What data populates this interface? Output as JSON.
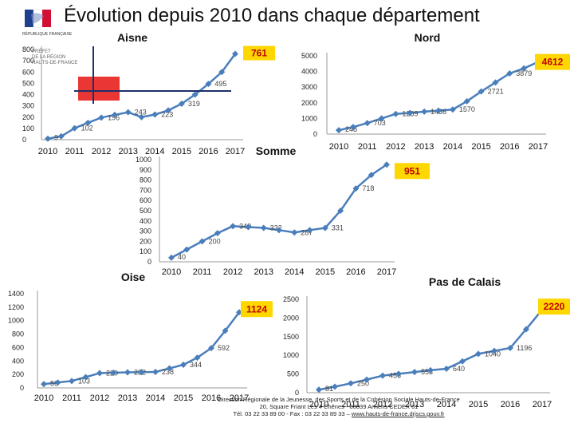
{
  "page_title": "Évolution depuis 2010 dans chaque département",
  "logo_text": "RÉPUBLIQUE FRANÇAISE",
  "insert_text": [
    "PRÉFET",
    "DE LA RÉGION",
    "HAUTS-DE-FRANCE"
  ],
  "footer": {
    "line1": "Direction Régionale de la Jeunesse, des Sports et de la Cohésion Sociale Hauts-de-France",
    "line2": "20, Square Friant Les 4 Chênes - 80039 Amiens CEDEX 01",
    "line3_prefix": "Tél. 03 22 33 89 00 - Fax : 03 22 33 89 33 – ",
    "line3_link": "www.hauts-de-france.drjscs.gouv.fr"
  },
  "colors": {
    "line": "#4a7ebb",
    "label_box": "#ffd700",
    "label_text": "#c00000",
    "gray_text": "#444444"
  },
  "chart_data": [
    {
      "type": "line",
      "title": "Aisne",
      "categories": [
        "2010",
        "2011",
        "2012",
        "2013",
        "2014",
        "2015",
        "2016",
        "2017"
      ],
      "x": [
        2010,
        2010.5,
        2011,
        2011.5,
        2012,
        2012.5,
        2013,
        2013.5,
        2014,
        2014.5,
        2015,
        2015.5,
        2016,
        2016.5,
        2017
      ],
      "values": [
        9,
        30,
        102,
        150,
        196,
        220,
        243,
        200,
        223,
        260,
        319,
        400,
        495,
        600,
        761
      ],
      "point_labels": [
        "9",
        "",
        "102",
        "",
        "196",
        "",
        "243",
        "",
        "223",
        "",
        "319",
        "",
        "495",
        "",
        "761"
      ],
      "yticks": [
        0,
        100,
        200,
        300,
        400,
        500,
        600,
        700,
        800
      ],
      "ylim": [
        0,
        800
      ],
      "highlight_label": "761"
    },
    {
      "type": "line",
      "title": "Nord",
      "categories": [
        "2010",
        "2011",
        "2012",
        "2013",
        "2014",
        "2015",
        "2016",
        "2017"
      ],
      "x": [
        2010,
        2010.5,
        2011,
        2011.5,
        2012,
        2012.5,
        2013,
        2013.5,
        2014,
        2014.5,
        2015,
        2015.5,
        2016,
        2016.5,
        2017
      ],
      "values": [
        248,
        450,
        703,
        1000,
        1289,
        1350,
        1436,
        1500,
        1570,
        2100,
        2721,
        3300,
        3879,
        4200,
        4612
      ],
      "point_labels": [
        "248",
        "",
        "703",
        "",
        "1289",
        "",
        "1436",
        "",
        "1570",
        "",
        "2721",
        "",
        "3879",
        "",
        "4612"
      ],
      "yticks": [
        0,
        1000,
        2000,
        3000,
        4000,
        5000
      ],
      "ylim": [
        0,
        5000
      ],
      "highlight_label": "4612"
    },
    {
      "type": "line",
      "title": "Somme",
      "categories": [
        "2010",
        "2011",
        "2012",
        "2013",
        "2014",
        "2015",
        "2016",
        "2017"
      ],
      "x": [
        2010,
        2010.5,
        2011,
        2011.5,
        2012,
        2012.5,
        2013,
        2013.5,
        2014,
        2014.5,
        2015,
        2015.5,
        2016,
        2016.5,
        2017
      ],
      "values": [
        40,
        120,
        200,
        280,
        349,
        340,
        332,
        310,
        287,
        310,
        331,
        500,
        718,
        850,
        951
      ],
      "point_labels": [
        "40",
        "",
        "200",
        "",
        "349",
        "",
        "332",
        "",
        "287",
        "",
        "331",
        "",
        "718",
        "",
        "951"
      ],
      "yticks": [
        0,
        100,
        200,
        300,
        400,
        500,
        600,
        700,
        800,
        900,
        1000
      ],
      "ylim": [
        0,
        1000
      ],
      "highlight_label": "951"
    },
    {
      "type": "line",
      "title": "Oise",
      "categories": [
        "2010",
        "2011",
        "2012",
        "2013",
        "2014",
        "2015",
        "2016",
        "2017"
      ],
      "x": [
        2010,
        2010.5,
        2011,
        2011.5,
        2012,
        2012.5,
        2013,
        2013.5,
        2014,
        2014.5,
        2015,
        2015.5,
        2016,
        2016.5,
        2017
      ],
      "values": [
        56,
        80,
        103,
        160,
        220,
        226,
        232,
        235,
        238,
        290,
        344,
        450,
        592,
        850,
        1124
      ],
      "point_labels": [
        "56",
        "",
        "103",
        "",
        "220",
        "",
        "232",
        "",
        "238",
        "",
        "344",
        "",
        "592",
        "",
        "1124"
      ],
      "yticks": [
        0,
        200,
        400,
        600,
        800,
        1000,
        1200,
        1400
      ],
      "ylim": [
        0,
        1400
      ],
      "highlight_label": "1124"
    },
    {
      "type": "line",
      "title": "Pas de Calais",
      "categories": [
        "2010",
        "2011",
        "2012",
        "2013",
        "2014",
        "2015",
        "2016",
        "2017"
      ],
      "x": [
        2010,
        2010.5,
        2011,
        2011.5,
        2012,
        2012.5,
        2013,
        2013.5,
        2014,
        2014.5,
        2015,
        2015.5,
        2016,
        2016.5,
        2017
      ],
      "values": [
        81,
        160,
        250,
        350,
        456,
        505,
        553,
        600,
        640,
        840,
        1040,
        1120,
        1196,
        1700,
        2220
      ],
      "point_labels": [
        "81",
        "",
        "250",
        "",
        "456",
        "",
        "553",
        "",
        "640",
        "",
        "1040",
        "",
        "1196",
        "",
        "2220"
      ],
      "yticks": [
        0,
        500,
        1000,
        1500,
        2000,
        2500
      ],
      "ylim": [
        0,
        2500
      ],
      "highlight_label": "2220"
    }
  ]
}
